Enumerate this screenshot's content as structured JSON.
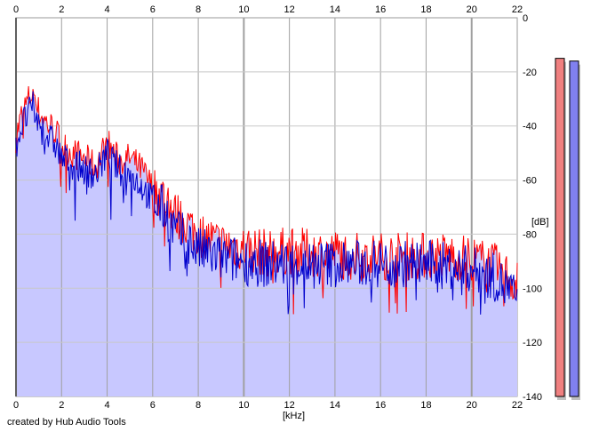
{
  "chart_data": {
    "type": "line",
    "xlabel": "[kHz]",
    "ylabel": "[dB]",
    "xlim": [
      0,
      22
    ],
    "ylim": [
      -140,
      0
    ],
    "x_ticks": [
      0,
      2,
      4,
      6,
      8,
      10,
      12,
      14,
      16,
      18,
      20,
      22
    ],
    "y_ticks": [
      0,
      -20,
      -40,
      -60,
      -80,
      -100,
      -120,
      -140
    ],
    "grid": true,
    "credit": "created by Hub Audio Tools",
    "series": [
      {
        "color": "#ff0000",
        "x": [
          0,
          0.25,
          0.5,
          0.75,
          1,
          1.25,
          1.5,
          1.75,
          2,
          2.5,
          3,
          3.5,
          4,
          4.5,
          5,
          5.5,
          6,
          6.5,
          7,
          7.5,
          8,
          9,
          10,
          11,
          12,
          13,
          14,
          15,
          16,
          17,
          18,
          19,
          20,
          21,
          21.5,
          22
        ],
        "y": [
          -44,
          -36,
          -31,
          -27,
          -35,
          -38,
          -40,
          -42,
          -47,
          -50,
          -52,
          -55,
          -46,
          -53,
          -52,
          -56,
          -63,
          -66,
          -73,
          -76,
          -80,
          -84,
          -85,
          -87,
          -86,
          -87,
          -87,
          -88,
          -88,
          -88,
          -88,
          -88,
          -89,
          -92,
          -95,
          -98
        ]
      },
      {
        "color": "#0000cc",
        "x": [
          0,
          0.25,
          0.5,
          0.75,
          1,
          1.25,
          1.5,
          1.75,
          2,
          2.5,
          3,
          3.5,
          4,
          4.5,
          5,
          5.5,
          6,
          6.5,
          7,
          7.5,
          8,
          9,
          10,
          11,
          12,
          13,
          14,
          15,
          16,
          17,
          18,
          19,
          20,
          21,
          21.5,
          22
        ],
        "y": [
          -47,
          -40,
          -36,
          -33,
          -40,
          -42,
          -45,
          -47,
          -52,
          -54,
          -56,
          -58,
          -50,
          -56,
          -58,
          -62,
          -68,
          -71,
          -79,
          -82,
          -86,
          -89,
          -90,
          -91,
          -91,
          -91,
          -91,
          -91,
          -91,
          -91,
          -91,
          -92,
          -93,
          -96,
          -100,
          -104
        ]
      }
    ],
    "fill_color": "#c8c8ff",
    "level_meters": [
      {
        "color": "#f08080",
        "level_db": -15
      },
      {
        "color": "#8080f0",
        "level_db": -16
      }
    ]
  }
}
